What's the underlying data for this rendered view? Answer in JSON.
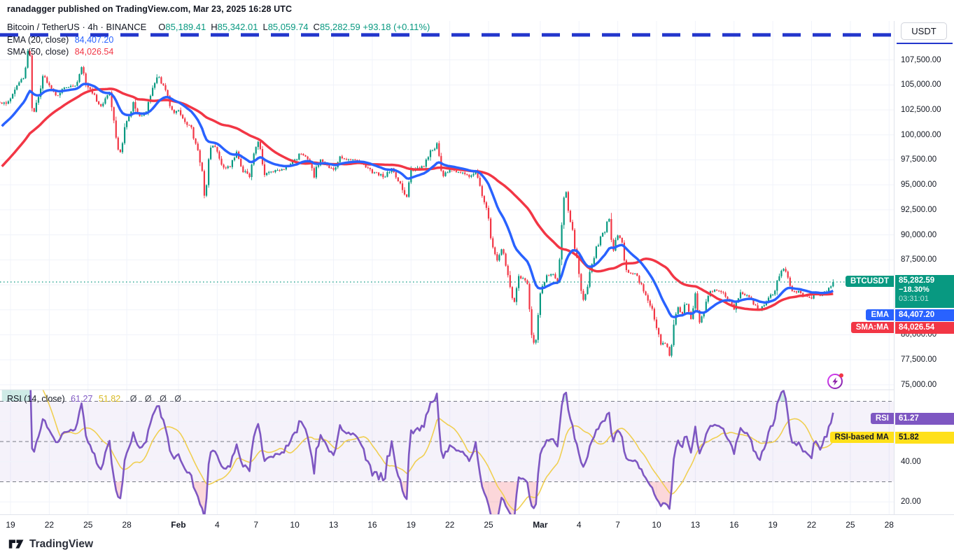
{
  "attribution": "ranadagger published on TradingView.com, Mar 23, 2025 16:28 UTC",
  "header": {
    "symbol": "Bitcoin / TetherUS",
    "separator": "·",
    "timeframe": "4h",
    "exchange": "BINANCE",
    "o_label": "O",
    "o": "85,189.41",
    "h_label": "H",
    "h": "85,342.01",
    "l_label": "L",
    "l": "85,059.74",
    "c_label": "C",
    "c": "85,282.59",
    "change": "+93.18 (+0.11%)"
  },
  "legend": {
    "ema_label": "EMA (20, close)",
    "ema_value": "84,407.20",
    "sma_label": "SMA (50, close)",
    "sma_value": "84,026.54",
    "rsi_label": "RSI (14, close)",
    "rsi_value": "61.27",
    "rsi_ma_value": "51.82",
    "rsi_empty": "Ø Ø Ø Ø"
  },
  "axis": {
    "currency": "USDT"
  },
  "badges": {
    "symbol": "BTCUSDT",
    "price": "85,282.59",
    "change": "−18.30%",
    "countdown": "03:31:01",
    "ema_label": "EMA",
    "ema_value": "84,407.20",
    "sma_label": "SMA:MA",
    "sma_value": "84,026.54",
    "rsi_label": "RSI",
    "rsi_value": "61.27",
    "rsi_ma_label": "RSI-based MA",
    "rsi_ma_value": "51.82",
    "rsi_axis_hi": "61.27",
    "rsi_axis_lo": "51.82"
  },
  "footer": {
    "logo_text": "TradingView"
  },
  "colors": {
    "up": "#089981",
    "down": "#f23645",
    "ema": "#2962ff",
    "sma": "#f23645",
    "rsi": "#7e57c2",
    "rsi_ma": "#f0cf52",
    "grid": "#f0f3fa",
    "border": "#e0e3eb",
    "text": "#131722",
    "dashed_level": "#787b86",
    "drawn_line": "#2336cc",
    "band_fill": "rgba(126,87,194,0.08)",
    "oversold_fill": "rgba(242,54,69,0.20)",
    "overbought_fill": "rgba(8,153,129,0.20)",
    "last_price_line": "#089981"
  },
  "chart_data": {
    "type": "candlestick",
    "title": "Bitcoin / TetherUS · 4h · BINANCE",
    "subpanes": [
      "price",
      "RSI"
    ],
    "legend_note": "blue dashed horizontal drawing at 110,000; dotted last-price line at 85,282.59",
    "x_axis": {
      "start_date": "Jan 19",
      "end_date": "Mar 23 16:00",
      "candles_per_day": 6,
      "labels": [
        {
          "label": "19",
          "day": 0
        },
        {
          "label": "22",
          "day": 3
        },
        {
          "label": "25",
          "day": 6
        },
        {
          "label": "28",
          "day": 9
        },
        {
          "label": "Feb",
          "day": 13,
          "bold": true
        },
        {
          "label": "4",
          "day": 16
        },
        {
          "label": "7",
          "day": 19
        },
        {
          "label": "10",
          "day": 22
        },
        {
          "label": "13",
          "day": 25
        },
        {
          "label": "16",
          "day": 28
        },
        {
          "label": "19",
          "day": 31
        },
        {
          "label": "22",
          "day": 34
        },
        {
          "label": "25",
          "day": 37
        },
        {
          "label": "Mar",
          "day": 41,
          "bold": true
        },
        {
          "label": "4",
          "day": 44
        },
        {
          "label": "7",
          "day": 47
        },
        {
          "label": "10",
          "day": 50
        },
        {
          "label": "13",
          "day": 53
        },
        {
          "label": "16",
          "day": 56
        },
        {
          "label": "19",
          "day": 59
        },
        {
          "label": "22",
          "day": 62
        },
        {
          "label": "25",
          "day": 65
        },
        {
          "label": "28",
          "day": 68
        }
      ]
    },
    "y_axis": {
      "price_ticks": [
        107500,
        105000,
        102500,
        100000,
        97500,
        95000,
        92500,
        90000,
        87500,
        80000,
        77500,
        75000
      ],
      "price_tick_labels": [
        "107,500.00",
        "105,000.00",
        "102,500.00",
        "100,000.00",
        "97,500.00",
        "95,000.00",
        "92,500.00",
        "90,000.00",
        "87,500.00",
        "80,000.00",
        "77,500.00",
        "75,000.00"
      ],
      "gridline_step": 2500,
      "visible_range": [
        74500,
        111400
      ]
    },
    "rsi_axis": {
      "ticks": [
        40,
        20
      ],
      "tick_labels": [
        "40.00",
        "20.00"
      ],
      "bands": [
        70,
        50,
        30
      ],
      "last_rsi": 61.27,
      "last_rsi_ma": 51.82
    },
    "overlays": {
      "ema_period": 20,
      "ema_last": 84407.2,
      "sma_period": 50,
      "sma_last": 84026.54,
      "rsi_period": 14,
      "rsi_ma_period": 14,
      "horizontal_drawing_price": 110000,
      "last_price": 85282.59
    },
    "series": {
      "description": "close-price anchor keypoints [day offset from Jan 19 00:00 UTC, close USDT] read from chart",
      "first_candle_day": -0.83,
      "last_candle_day": 63.67,
      "anchors": [
        [
          -0.4,
          103200
        ],
        [
          0,
          103600
        ],
        [
          0.5,
          104800
        ],
        [
          1,
          105800
        ],
        [
          1.2,
          107200
        ],
        [
          1.35,
          108900
        ],
        [
          1.45,
          109300
        ],
        [
          1.6,
          103800
        ],
        [
          1.8,
          101900
        ],
        [
          2,
          102900
        ],
        [
          2.5,
          106000
        ],
        [
          3,
          105100
        ],
        [
          3.5,
          103800
        ],
        [
          4,
          104600
        ],
        [
          5,
          104900
        ],
        [
          5.5,
          106600
        ],
        [
          6,
          104700
        ],
        [
          6.5,
          103900
        ],
        [
          7,
          102700
        ],
        [
          7.6,
          104400
        ],
        [
          8.2,
          99600
        ],
        [
          8.4,
          97600
        ],
        [
          8.6,
          99100
        ],
        [
          9,
          101300
        ],
        [
          9.5,
          103100
        ],
        [
          10,
          101700
        ],
        [
          10.5,
          102300
        ],
        [
          11,
          104800
        ],
        [
          11.4,
          105800
        ],
        [
          12,
          104600
        ],
        [
          12.5,
          102200
        ],
        [
          13,
          102400
        ],
        [
          13.5,
          101300
        ],
        [
          14,
          100700
        ],
        [
          14.6,
          97800
        ],
        [
          14.9,
          95900
        ],
        [
          15.05,
          93600
        ],
        [
          15.25,
          96800
        ],
        [
          15.6,
          99200
        ],
        [
          16,
          98400
        ],
        [
          16.5,
          96500
        ],
        [
          17,
          96900
        ],
        [
          17.5,
          98100
        ],
        [
          18,
          96400
        ],
        [
          18.5,
          95900
        ],
        [
          19,
          98700
        ],
        [
          19.2,
          99700
        ],
        [
          19.6,
          96000
        ],
        [
          20,
          96300
        ],
        [
          21,
          96500
        ],
        [
          22,
          97400
        ],
        [
          22.5,
          98200
        ],
        [
          23,
          97600
        ],
        [
          23.5,
          95900
        ],
        [
          24,
          97800
        ],
        [
          24.5,
          96800
        ],
        [
          25,
          96500
        ],
        [
          25.5,
          97700
        ],
        [
          26,
          97600
        ],
        [
          27,
          97400
        ],
        [
          28,
          96300
        ],
        [
          29,
          95800
        ],
        [
          29.5,
          96700
        ],
        [
          30,
          95500
        ],
        [
          30.6,
          93800
        ],
        [
          31,
          96300
        ],
        [
          31.5,
          96600
        ],
        [
          32,
          96900
        ],
        [
          32.5,
          98200
        ],
        [
          33,
          99000
        ],
        [
          33.4,
          95800
        ],
        [
          34,
          96500
        ],
        [
          35,
          96200
        ],
        [
          35.5,
          95900
        ],
        [
          36,
          96400
        ],
        [
          36.5,
          94200
        ],
        [
          37,
          91600
        ],
        [
          37.3,
          88600
        ],
        [
          37.7,
          87300
        ],
        [
          38,
          88900
        ],
        [
          38.4,
          86400
        ],
        [
          38.8,
          84200
        ],
        [
          39.05,
          82900
        ],
        [
          39.3,
          85900
        ],
        [
          39.7,
          85500
        ],
        [
          40,
          84900
        ],
        [
          40.3,
          80600
        ],
        [
          40.55,
          78600
        ],
        [
          40.8,
          81300
        ],
        [
          41,
          84200
        ],
        [
          41.5,
          85900
        ],
        [
          42,
          86100
        ],
        [
          42.4,
          85200
        ],
        [
          42.75,
          93200
        ],
        [
          43,
          94100
        ],
        [
          43.3,
          91400
        ],
        [
          43.7,
          88700
        ],
        [
          44,
          86300
        ],
        [
          44.3,
          83400
        ],
        [
          44.6,
          84100
        ],
        [
          45,
          87300
        ],
        [
          45.5,
          89200
        ],
        [
          46,
          90500
        ],
        [
          46.3,
          91700
        ],
        [
          46.6,
          88400
        ],
        [
          47,
          90000
        ],
        [
          47.3,
          89400
        ],
        [
          47.7,
          86300
        ],
        [
          48,
          86200
        ],
        [
          48.5,
          86000
        ],
        [
          49,
          84300
        ],
        [
          49.5,
          83000
        ],
        [
          50,
          80800
        ],
        [
          50.4,
          78900
        ],
        [
          50.7,
          79300
        ],
        [
          51,
          77900
        ],
        [
          51.1,
          77200
        ],
        [
          51.3,
          81100
        ],
        [
          51.6,
          82900
        ],
        [
          52,
          82100
        ],
        [
          52.3,
          83500
        ],
        [
          52.6,
          81600
        ],
        [
          53,
          83900
        ],
        [
          53.3,
          81300
        ],
        [
          53.6,
          81900
        ],
        [
          54,
          84000
        ],
        [
          54.5,
          84600
        ],
        [
          55,
          84300
        ],
        [
          55.5,
          83600
        ],
        [
          56,
          82500
        ],
        [
          56.5,
          84100
        ],
        [
          57,
          84000
        ],
        [
          57.5,
          83200
        ],
        [
          58,
          82400
        ],
        [
          58.5,
          83400
        ],
        [
          59,
          84100
        ],
        [
          59.5,
          85900
        ],
        [
          59.85,
          86900
        ],
        [
          60.1,
          85900
        ],
        [
          60.4,
          84400
        ],
        [
          61,
          84300
        ],
        [
          61.5,
          83900
        ],
        [
          62,
          83700
        ],
        [
          62.3,
          84200
        ],
        [
          62.6,
          83900
        ],
        [
          63,
          84200
        ],
        [
          63.35,
          84600
        ],
        [
          63.67,
          85282.59
        ]
      ]
    }
  }
}
